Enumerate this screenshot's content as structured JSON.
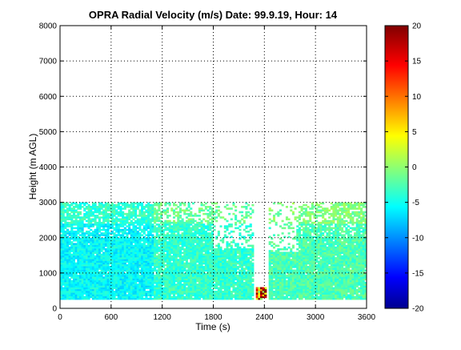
{
  "chart_data": {
    "type": "heatmap",
    "title": "OPRA Radial Velocity (m/s)  Date: 99.9.19, Hour: 14",
    "xlabel": "Time (s)",
    "ylabel": "Height (m AGL)",
    "xlim": [
      0,
      3600
    ],
    "ylim": [
      0,
      8000
    ],
    "x_ticks": [
      "0",
      "600",
      "1200",
      "1800",
      "2400",
      "3000",
      "3600"
    ],
    "y_ticks": [
      "0",
      "1000",
      "2000",
      "3000",
      "4000",
      "5000",
      "6000",
      "7000",
      "8000"
    ],
    "grid": true,
    "colorbar": {
      "range": [
        -20,
        20
      ],
      "ticks": [
        "20",
        "15",
        "10",
        "5",
        "0",
        "-5",
        "-10",
        "-15",
        "-20"
      ],
      "colormap": "jet"
    },
    "data_extent": {
      "time_range": [
        0,
        3600
      ],
      "height_range": [
        250,
        3000
      ],
      "gap_time_range": [
        2280,
        2450
      ],
      "gap_top_height": 1300
    },
    "approx_fields": [
      {
        "time_range": [
          0,
          1100
        ],
        "height_range": [
          250,
          3000
        ],
        "velocity": -5
      },
      {
        "time_range": [
          1100,
          2280
        ],
        "height_range": [
          250,
          3000
        ],
        "velocity": -3
      },
      {
        "time_range": [
          2450,
          3600
        ],
        "height_range": [
          250,
          3000
        ],
        "velocity": -2
      },
      {
        "time_range": [
          2300,
          2420
        ],
        "height_range": [
          250,
          600
        ],
        "velocity": 15
      }
    ]
  }
}
